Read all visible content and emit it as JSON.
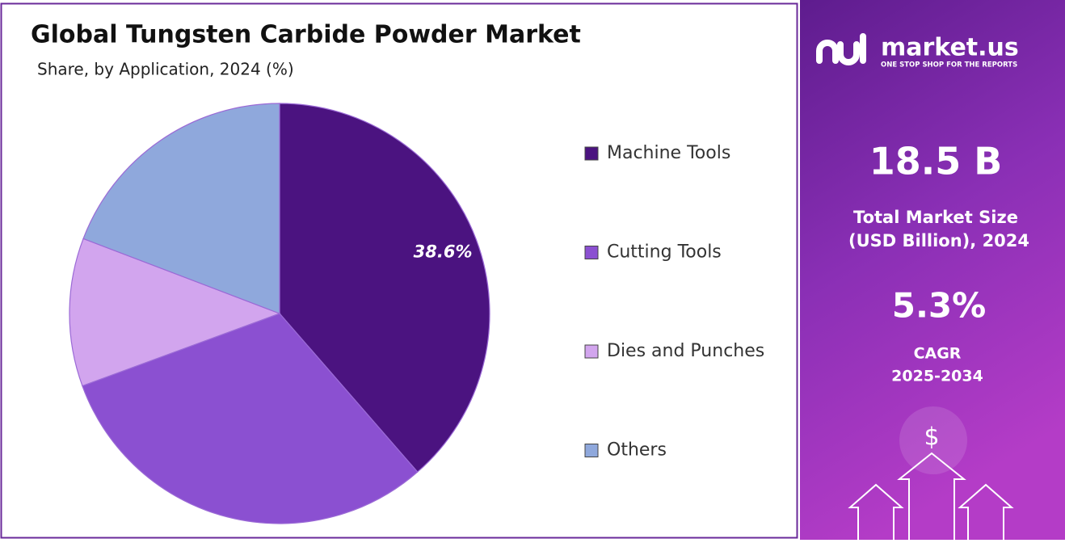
{
  "chart_data": {
    "type": "pie",
    "title": "Global Tungsten Carbide Powder Market",
    "subtitle": "Share, by Application, 2024 (%)",
    "categories": [
      "Machine Tools",
      "Cutting Tools",
      "Dies and Punches",
      "Others"
    ],
    "values": [
      38.6,
      30.8,
      11.4,
      19.2
    ],
    "value_labels": [
      "38.6%",
      null,
      null,
      null
    ],
    "colors": [
      "#4b1380",
      "#8b50d1",
      "#d2a5ee",
      "#8fa8dc"
    ],
    "legend": "right"
  },
  "side_panel": {
    "brand": "market.us",
    "tagline": "ONE STOP SHOP FOR THE REPORTS",
    "market_size": "18.5 B",
    "market_size_label": [
      "Total Market Size",
      "(USD Billion), 2024"
    ],
    "cagr": "5.3%",
    "cagr_label": [
      "CAGR",
      "2025-2034"
    ],
    "icon": "$"
  }
}
